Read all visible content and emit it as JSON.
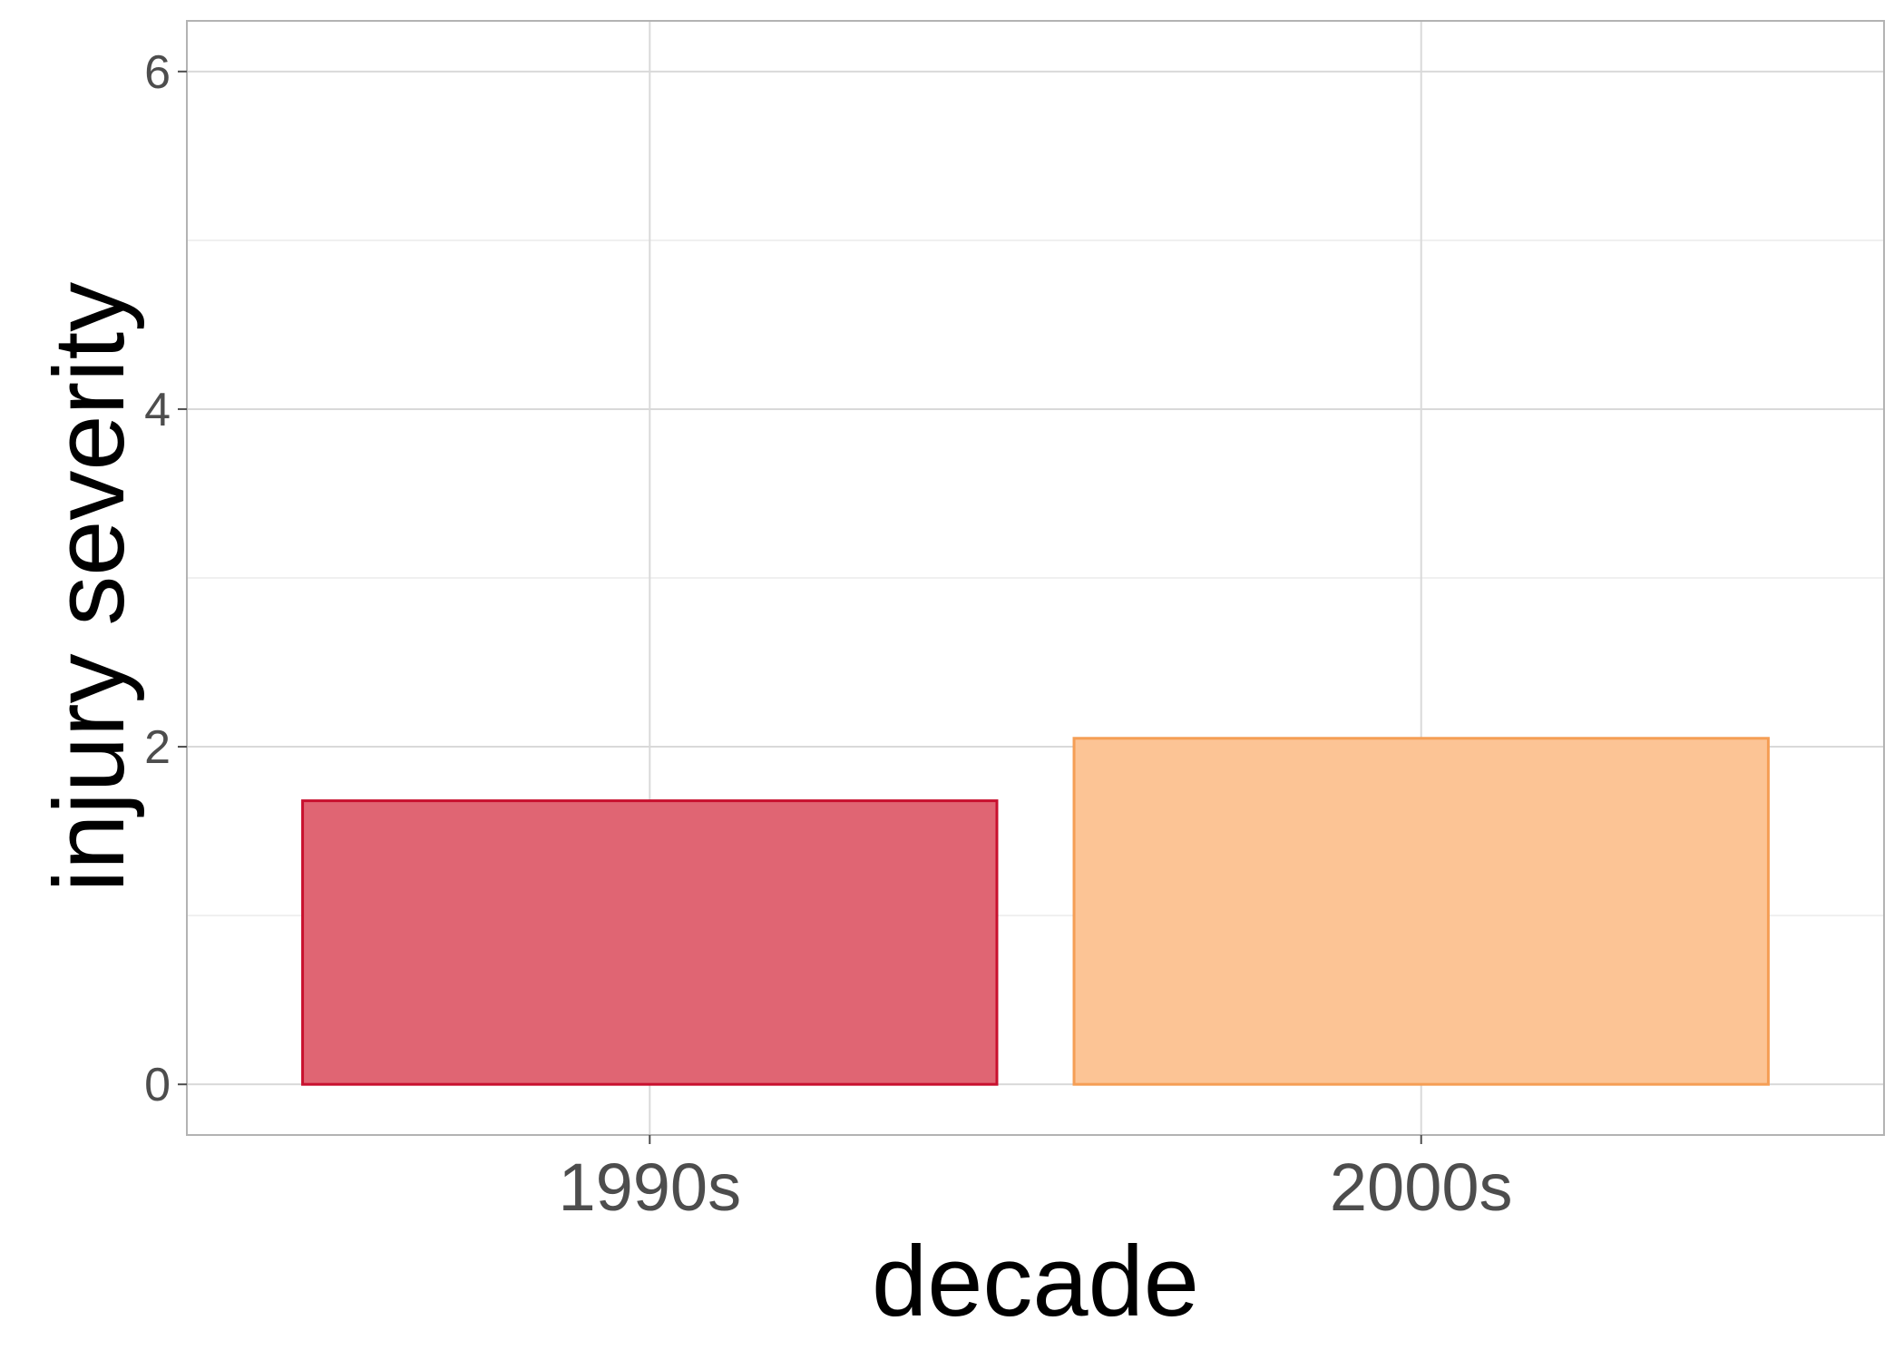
{
  "chart_data": {
    "type": "bar",
    "title": "",
    "xlabel": "decade",
    "ylabel": "injury severity",
    "categories": [
      "1990s",
      "2000s"
    ],
    "values": [
      1.68,
      2.05
    ],
    "ylim": [
      -0.3,
      6.3
    ],
    "yticks": [
      0,
      2,
      4,
      6
    ],
    "grid": true,
    "legend": "none",
    "colors": {
      "fills": [
        "#e06573",
        "#fcc495"
      ],
      "strokes": [
        "#c8102e",
        "#f59e55"
      ],
      "grid_major": "#d9d9d9",
      "grid_minor": "#ebebeb",
      "panel_border": "#b3b3b3"
    }
  }
}
